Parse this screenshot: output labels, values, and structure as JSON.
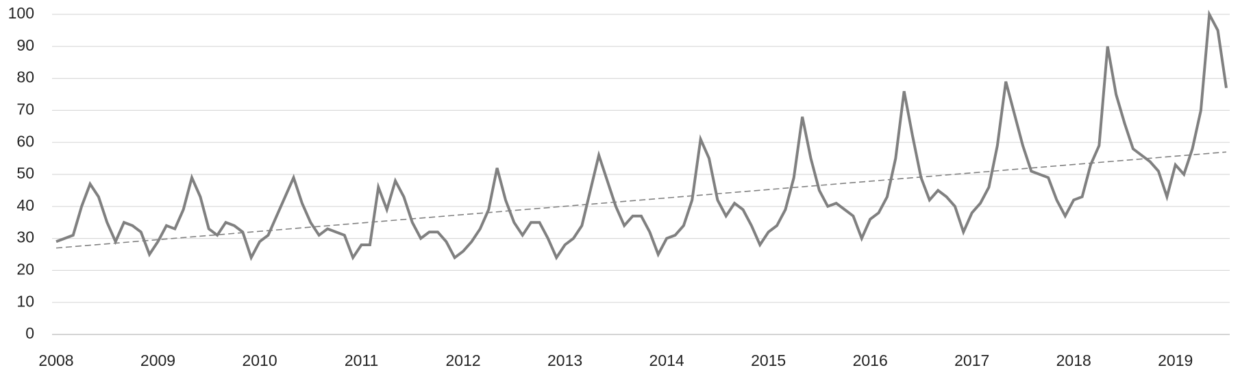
{
  "chart_data": {
    "type": "line",
    "categories": [
      "2008",
      null,
      null,
      null,
      null,
      null,
      null,
      null,
      null,
      null,
      null,
      null,
      "2009",
      null,
      null,
      null,
      null,
      null,
      null,
      null,
      null,
      null,
      null,
      null,
      "2010",
      null,
      null,
      null,
      null,
      null,
      null,
      null,
      null,
      null,
      null,
      null,
      "2011",
      null,
      null,
      null,
      null,
      null,
      null,
      null,
      null,
      null,
      null,
      null,
      "2012",
      null,
      null,
      null,
      null,
      null,
      null,
      null,
      null,
      null,
      null,
      null,
      "2013",
      null,
      null,
      null,
      null,
      null,
      null,
      null,
      null,
      null,
      null,
      null,
      "2014",
      null,
      null,
      null,
      null,
      null,
      null,
      null,
      null,
      null,
      null,
      null,
      "2015",
      null,
      null,
      null,
      null,
      null,
      null,
      null,
      null,
      null,
      null,
      null,
      "2016",
      null,
      null,
      null,
      null,
      null,
      null,
      null,
      null,
      null,
      null,
      null,
      "2017",
      null,
      null,
      null,
      null,
      null,
      null,
      null,
      null,
      null,
      null,
      null,
      "2018",
      null,
      null,
      null,
      null,
      null,
      null,
      null,
      null,
      null,
      null,
      null,
      "2019",
      null,
      null,
      null,
      null,
      null,
      null
    ],
    "values": [
      29,
      30,
      31,
      40,
      47,
      43,
      35,
      29,
      35,
      34,
      32,
      25,
      29,
      34,
      33,
      39,
      49,
      43,
      33,
      31,
      35,
      34,
      32,
      24,
      29,
      31,
      37,
      43,
      49,
      41,
      35,
      31,
      33,
      32,
      31,
      24,
      28,
      28,
      46,
      39,
      48,
      43,
      35,
      30,
      32,
      32,
      29,
      24,
      26,
      29,
      33,
      39,
      52,
      42,
      35,
      31,
      35,
      35,
      30,
      24,
      28,
      30,
      34,
      45,
      56,
      48,
      40,
      34,
      37,
      37,
      32,
      25,
      30,
      31,
      34,
      42,
      61,
      55,
      42,
      37,
      41,
      39,
      34,
      28,
      32,
      34,
      39,
      49,
      68,
      55,
      45,
      40,
      41,
      39,
      37,
      30,
      36,
      38,
      43,
      55,
      76,
      62,
      49,
      42,
      45,
      43,
      40,
      32,
      38,
      41,
      46,
      59,
      79,
      69,
      59,
      51,
      50,
      49,
      42,
      37,
      42,
      43,
      53,
      59,
      90,
      75,
      66,
      58,
      56,
      54,
      51,
      43,
      53,
      50,
      58,
      70,
      100,
      95,
      77
    ],
    "color": "#808080",
    "trendline": {
      "start": 27,
      "end": 57,
      "color": "#808080"
    },
    "ylim": [
      0,
      100
    ],
    "yticks": [
      0,
      10,
      20,
      30,
      40,
      50,
      60,
      70,
      80,
      90,
      100
    ],
    "grid": true
  }
}
